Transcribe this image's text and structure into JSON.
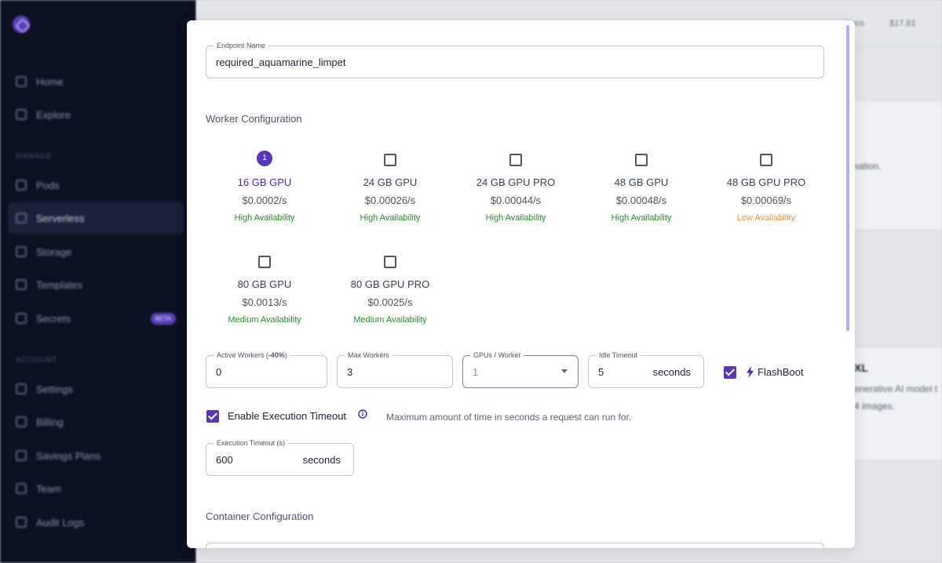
{
  "background": {
    "sidebar": {
      "items": [
        {
          "label": "Home",
          "icon": "home-icon"
        },
        {
          "label": "Explore",
          "icon": "explore-icon"
        },
        {
          "label": "Pods",
          "icon": "pods-icon"
        },
        {
          "label": "Serverless",
          "icon": "serverless-icon"
        },
        {
          "label": "Storage",
          "icon": "storage-icon"
        },
        {
          "label": "Templates",
          "icon": "templates-icon"
        },
        {
          "label": "Secrets",
          "icon": "key-icon"
        },
        {
          "label": "Settings",
          "icon": "gear-icon"
        },
        {
          "label": "Billing",
          "icon": "billing-icon"
        },
        {
          "label": "Savings Plans",
          "icon": "tag-icon"
        },
        {
          "label": "Team",
          "icon": "team-icon"
        },
        {
          "label": "Audit Logs",
          "icon": "audit-icon"
        }
      ],
      "section_manage": "MANAGE",
      "section_account": "ACCOUNT",
      "badge_beta": "BETA"
    },
    "topbar": {
      "balance": "$17.81",
      "docs": "Docs"
    },
    "card_text": "mation.",
    "card2_title": "XL",
    "card2_line1": "enerative AI model t",
    "card2_line2": "4 images."
  },
  "modal": {
    "endpoint_name": {
      "label": "Endpoint Name",
      "value": "required_aquamarine_limpet"
    },
    "worker_config_title": "Worker Configuration",
    "gpus": [
      {
        "name": "16 GB GPU",
        "price": "$0.0002/s",
        "availability": "High Availability",
        "level": "high",
        "selected": true,
        "order": "1"
      },
      {
        "name": "24 GB GPU",
        "price": "$0.00026/s",
        "availability": "High Availability",
        "level": "high",
        "selected": false
      },
      {
        "name": "24 GB GPU PRO",
        "price": "$0.00044/s",
        "availability": "High Availability",
        "level": "high",
        "selected": false
      },
      {
        "name": "48 GB GPU",
        "price": "$0.00048/s",
        "availability": "High Availability",
        "level": "high",
        "selected": false
      },
      {
        "name": "48 GB GPU PRO",
        "price": "$0.00069/s",
        "availability": "Low Availability",
        "level": "low",
        "selected": false
      },
      {
        "name": "80 GB GPU",
        "price": "$0.0013/s",
        "availability": "Medium Availability",
        "level": "medium",
        "selected": false
      },
      {
        "name": "80 GB GPU PRO",
        "price": "$0.0025/s",
        "availability": "Medium Availability",
        "level": "medium",
        "selected": false
      }
    ],
    "active_workers": {
      "label": "Active Workers (",
      "discount": "-40%",
      "label_end": ")",
      "value": "0"
    },
    "max_workers": {
      "label": "Max Workers",
      "value": "3"
    },
    "gpus_per_worker": {
      "label": "GPUs / Worker",
      "value": "1"
    },
    "idle_timeout": {
      "label": "Idle Timeout",
      "value": "5",
      "suffix": "seconds"
    },
    "flashboot": {
      "label": "FlashBoot",
      "checked": true
    },
    "execution_timeout_toggle": {
      "label": "Enable Execution Timeout",
      "checked": true,
      "hint": "Maximum amount of time in seconds a request can run for."
    },
    "execution_timeout": {
      "label": "Execution Timeout (s)",
      "value": "600",
      "suffix": "seconds"
    },
    "container_config_title": "Container Configuration"
  },
  "colors": {
    "accent": "#5b35b5",
    "high_availability": "#2b8a2b",
    "low_availability": "#e8933a"
  }
}
